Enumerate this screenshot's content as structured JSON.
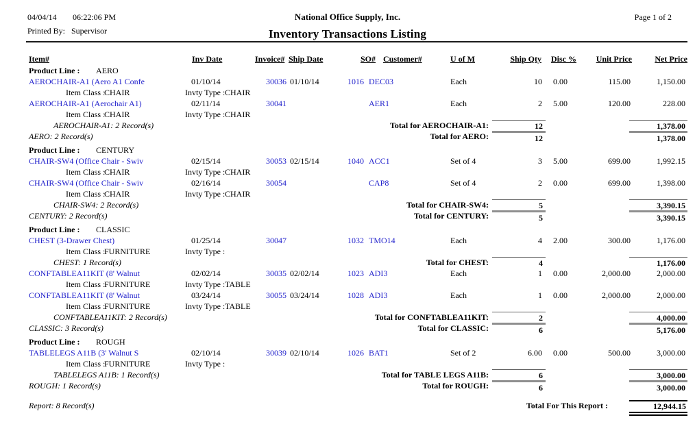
{
  "page": {
    "date": "04/04/14",
    "time": "06:22:06 PM",
    "printed_by_label": "Printed By:",
    "printed_by_value": "Supervisor",
    "company": "National Office Supply, Inc.",
    "title": "Inventory Transactions Listing",
    "page_label": "Page 1 of 2"
  },
  "colors": {
    "link": "#2222CC",
    "rule_thin": "#5f5f5f",
    "rule_thick": "#8f8f8f",
    "text": "#000000"
  },
  "labels": {
    "product_line": "Product Line :",
    "item_class": "Item Class :",
    "invty_type": "Invty Type :"
  },
  "columns": [
    {
      "key": "item",
      "label": "Item#"
    },
    {
      "key": "invdate",
      "label": "Inv Date"
    },
    {
      "key": "invoice",
      "label": "Invoice#"
    },
    {
      "key": "shipdate",
      "label": "Ship Date"
    },
    {
      "key": "so",
      "label": "SO#"
    },
    {
      "key": "customer",
      "label": "Customer#"
    },
    {
      "key": "uofm",
      "label": "U of M"
    },
    {
      "key": "shipqty",
      "label": "Ship Qty"
    },
    {
      "key": "disc",
      "label": "Disc %"
    },
    {
      "key": "unit",
      "label": "Unit Price"
    },
    {
      "key": "net",
      "label": "Net Price"
    }
  ],
  "report": {
    "groups": [
      {
        "product_line": "AERO",
        "items": [
          {
            "rows": [
              {
                "item_text": "AEROCHAIR-A1 (Aero A1 Confe",
                "inv_date": "01/10/14",
                "invoice": "30036",
                "ship_date": "01/10/14",
                "so": "1016",
                "customer": "DEC03",
                "uom": "Each",
                "qty": "10",
                "disc": "0.00",
                "unit": "115.00",
                "net": "1,150.00",
                "item_class": "CHAIR",
                "invty_type": "CHAIR"
              },
              {
                "item_text": "AEROCHAIR-A1 (Aerochair A1)",
                "inv_date": "02/11/14",
                "invoice": "30041",
                "ship_date": "",
                "so": "",
                "customer": "AER1",
                "uom": "Each",
                "qty": "2",
                "disc": "5.00",
                "unit": "120.00",
                "net": "228.00",
                "item_class": "CHAIR",
                "invty_type": "CHAIR"
              }
            ],
            "record_line": "AEROCHAIR-A1: 2 Record(s)",
            "total_label": "Total for AEROCHAIR-A1:",
            "total_qty": "12",
            "total_net": "1,378.00"
          }
        ],
        "record_line": "AERO: 2 Record(s)",
        "total_label": "Total for AERO:",
        "total_qty": "12",
        "total_net": "1,378.00"
      },
      {
        "product_line": "CENTURY",
        "items": [
          {
            "rows": [
              {
                "item_text": "CHAIR-SW4 (Office Chair - Swiv",
                "inv_date": "02/15/14",
                "invoice": "30053",
                "ship_date": "02/15/14",
                "so": "1040",
                "customer": "ACC1",
                "uom": "Set of 4",
                "qty": "3",
                "disc": "5.00",
                "unit": "699.00",
                "net": "1,992.15",
                "item_class": "CHAIR",
                "invty_type": "CHAIR"
              },
              {
                "item_text": "CHAIR-SW4 (Office Chair - Swiv",
                "inv_date": "02/16/14",
                "invoice": "30054",
                "ship_date": "",
                "so": "",
                "customer": "CAP8",
                "uom": "Set of 4",
                "qty": "2",
                "disc": "0.00",
                "unit": "699.00",
                "net": "1,398.00",
                "item_class": "CHAIR",
                "invty_type": "CHAIR"
              }
            ],
            "record_line": "CHAIR-SW4: 2 Record(s)",
            "total_label": "Total for CHAIR-SW4:",
            "total_qty": "5",
            "total_net": "3,390.15"
          }
        ],
        "record_line": "CENTURY: 2 Record(s)",
        "total_label": "Total for CENTURY:",
        "total_qty": "5",
        "total_net": "3,390.15"
      },
      {
        "product_line": "CLASSIC",
        "items": [
          {
            "rows": [
              {
                "item_text": "CHEST (3-Drawer Chest)",
                "inv_date": "01/25/14",
                "invoice": "30047",
                "ship_date": "",
                "so": "1032",
                "customer": "TMO14",
                "uom": "Each",
                "qty": "4",
                "disc": "2.00",
                "unit": "300.00",
                "net": "1,176.00",
                "item_class": "FURNITURE",
                "invty_type": ""
              }
            ],
            "record_line": "CHEST: 1 Record(s)",
            "total_label": "Total for CHEST:",
            "total_qty": "4",
            "total_net": "1,176.00"
          },
          {
            "rows": [
              {
                "item_text": "CONFTABLEA11KIT (8' Walnut",
                "inv_date": "02/02/14",
                "invoice": "30035",
                "ship_date": "02/02/14",
                "so": "1023",
                "customer": "ADI3",
                "uom": "Each",
                "qty": "1",
                "disc": "0.00",
                "unit": "2,000.00",
                "net": "2,000.00",
                "item_class": "FURNITURE",
                "invty_type": "TABLE"
              },
              {
                "item_text": "CONFTABLEA11KIT (8' Walnut",
                "inv_date": "03/24/14",
                "invoice": "30055",
                "ship_date": "03/24/14",
                "so": "1028",
                "customer": "ADI3",
                "uom": "Each",
                "qty": "1",
                "disc": "0.00",
                "unit": "2,000.00",
                "net": "2,000.00",
                "item_class": "FURNITURE",
                "invty_type": "TABLE"
              }
            ],
            "record_line": "CONFTABLEA11KIT: 2 Record(s)",
            "total_label": "Total for CONFTABLEA11KIT:",
            "total_qty": "2",
            "total_net": "4,000.00"
          }
        ],
        "record_line": "CLASSIC: 3 Record(s)",
        "total_label": "Total for CLASSIC:",
        "total_qty": "6",
        "total_net": "5,176.00"
      },
      {
        "product_line": "ROUGH",
        "items": [
          {
            "rows": [
              {
                "item_text": "TABLELEGS A11B (3' Walnut S",
                "inv_date": "02/10/14",
                "invoice": "30039",
                "ship_date": "02/10/14",
                "so": "1026",
                "customer": "BAT1",
                "uom": "Set of 2",
                "qty": "6.00",
                "disc": "0.00",
                "unit": "500.00",
                "net": "3,000.00",
                "item_class": "FURNITURE",
                "invty_type": ""
              }
            ],
            "record_line": "TABLELEGS A11B: 1 Record(s)",
            "total_label": "Total for TABLE LEGS A11B:",
            "total_qty": "6",
            "total_net": "3,000.00"
          }
        ],
        "record_line": "ROUGH: 1 Record(s)",
        "total_label": "Total for ROUGH:",
        "total_qty": "6",
        "total_net": "3,000.00"
      }
    ],
    "footer": {
      "records": "Report: 8 Record(s)",
      "total_label": "Total For This Report :",
      "total_value": "12,944.15"
    }
  }
}
